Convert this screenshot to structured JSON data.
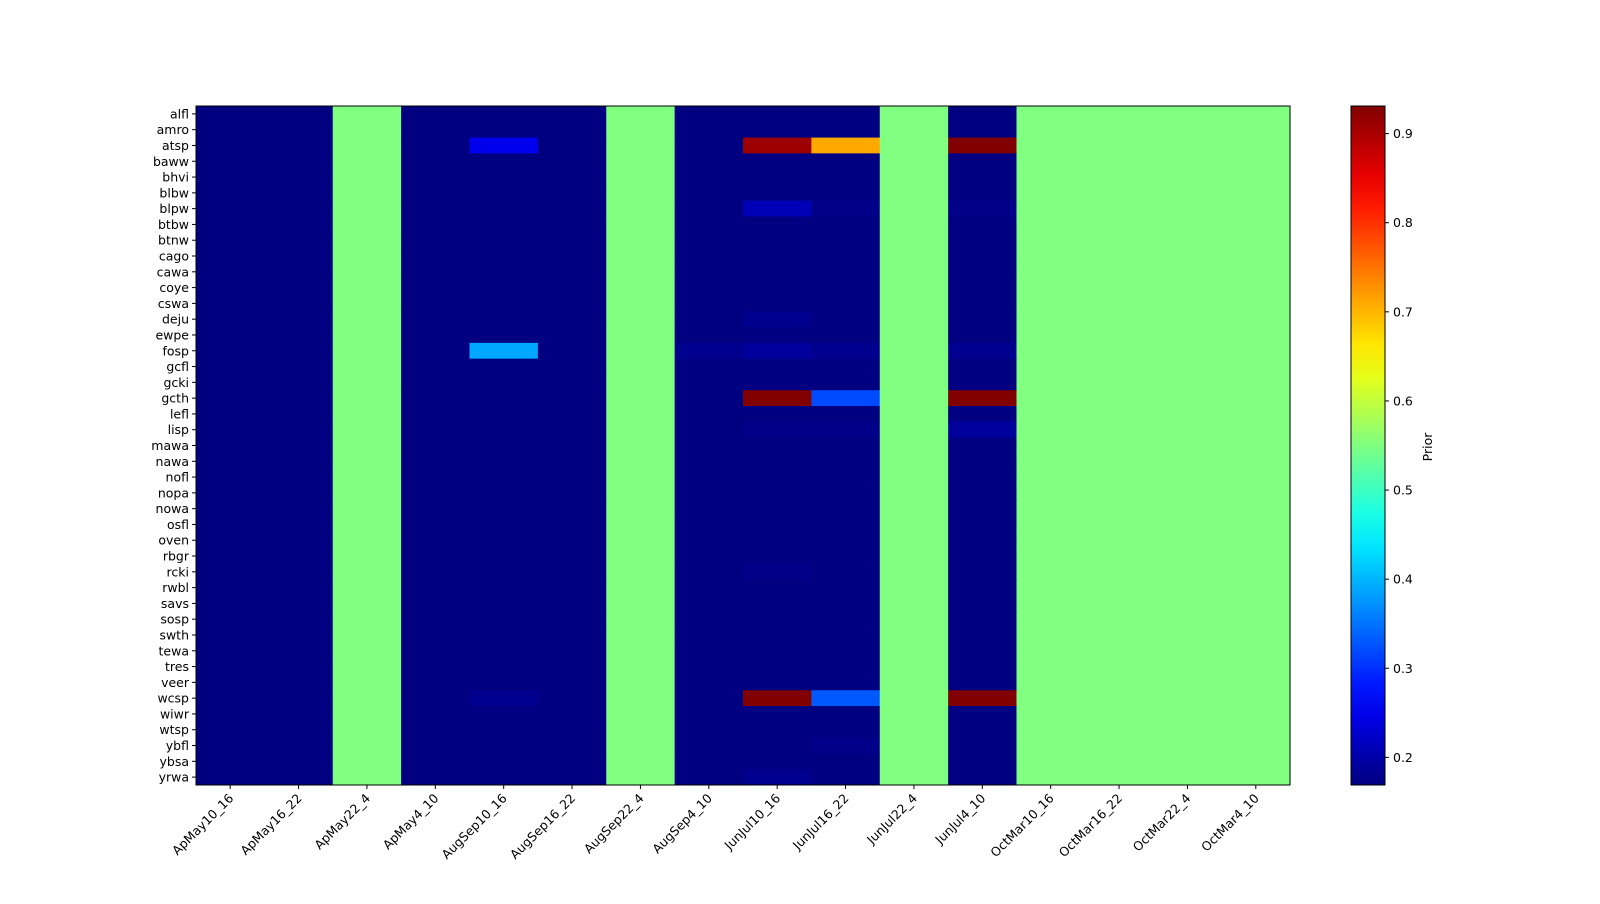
{
  "chart_data": {
    "type": "heatmap",
    "title": "",
    "xlabel": "",
    "ylabel": "",
    "colormap": "jet",
    "colorbar": {
      "label": "Prior",
      "range": [
        0.169,
        0.931
      ],
      "ticks": [
        "0.2",
        "0.3",
        "0.4",
        "0.5",
        "0.6",
        "0.7",
        "0.8",
        "0.9"
      ],
      "tick_values": [
        0.2,
        0.3,
        0.4,
        0.5,
        0.6,
        0.7,
        0.8,
        0.9
      ]
    },
    "columns": [
      "ApMay10_16",
      "ApMay16_22",
      "ApMay22_4",
      "ApMay4_10",
      "AugSep10_16",
      "AugSep16_22",
      "AugSep22_4",
      "AugSep4_10",
      "JunJul10_16",
      "JunJul16_22",
      "JunJul22_4",
      "JunJul4_10",
      "OctMar10_16",
      "OctMar16_22",
      "OctMar22_4",
      "OctMar4_10"
    ],
    "rows": [
      "alfl",
      "amro",
      "atsp",
      "baww",
      "bhvi",
      "blbw",
      "blpw",
      "btbw",
      "btnw",
      "cago",
      "cawa",
      "coye",
      "cswa",
      "deju",
      "ewpe",
      "fosp",
      "gcfl",
      "gcki",
      "gcth",
      "lefl",
      "lisp",
      "mawa",
      "nawa",
      "nofl",
      "nopa",
      "nowa",
      "osfl",
      "oven",
      "rbgr",
      "rcki",
      "rwbl",
      "savs",
      "sosp",
      "swth",
      "tewa",
      "tres",
      "veer",
      "wcsp",
      "wiwr",
      "wtsp",
      "ybfl",
      "ybsa",
      "yrwa"
    ],
    "values": [
      [
        0.17,
        0.17,
        0.55,
        0.17,
        0.17,
        0.17,
        0.55,
        0.17,
        0.17,
        0.17,
        0.55,
        0.17,
        0.55,
        0.55,
        0.55,
        0.55
      ],
      [
        0.17,
        0.17,
        0.55,
        0.17,
        0.17,
        0.17,
        0.55,
        0.17,
        0.17,
        0.17,
        0.55,
        0.17,
        0.55,
        0.55,
        0.55,
        0.55
      ],
      [
        0.17,
        0.17,
        0.55,
        0.17,
        0.25,
        0.17,
        0.55,
        0.17,
        0.91,
        0.71,
        0.55,
        0.93,
        0.55,
        0.55,
        0.55,
        0.55
      ],
      [
        0.17,
        0.17,
        0.55,
        0.17,
        0.17,
        0.17,
        0.55,
        0.17,
        0.17,
        0.17,
        0.55,
        0.17,
        0.55,
        0.55,
        0.55,
        0.55
      ],
      [
        0.17,
        0.17,
        0.55,
        0.17,
        0.17,
        0.17,
        0.55,
        0.17,
        0.17,
        0.17,
        0.55,
        0.17,
        0.55,
        0.55,
        0.55,
        0.55
      ],
      [
        0.17,
        0.17,
        0.55,
        0.17,
        0.17,
        0.17,
        0.55,
        0.17,
        0.17,
        0.17,
        0.55,
        0.17,
        0.55,
        0.55,
        0.55,
        0.55
      ],
      [
        0.17,
        0.17,
        0.55,
        0.17,
        0.17,
        0.17,
        0.55,
        0.17,
        0.21,
        0.175,
        0.55,
        0.175,
        0.55,
        0.55,
        0.55,
        0.55
      ],
      [
        0.17,
        0.17,
        0.55,
        0.17,
        0.17,
        0.17,
        0.55,
        0.17,
        0.17,
        0.17,
        0.55,
        0.17,
        0.55,
        0.55,
        0.55,
        0.55
      ],
      [
        0.17,
        0.17,
        0.55,
        0.17,
        0.17,
        0.17,
        0.55,
        0.17,
        0.17,
        0.17,
        0.55,
        0.17,
        0.55,
        0.55,
        0.55,
        0.55
      ],
      [
        0.17,
        0.17,
        0.55,
        0.17,
        0.17,
        0.17,
        0.55,
        0.17,
        0.17,
        0.17,
        0.55,
        0.17,
        0.55,
        0.55,
        0.55,
        0.55
      ],
      [
        0.17,
        0.17,
        0.55,
        0.17,
        0.17,
        0.17,
        0.55,
        0.17,
        0.17,
        0.17,
        0.55,
        0.17,
        0.55,
        0.55,
        0.55,
        0.55
      ],
      [
        0.17,
        0.17,
        0.55,
        0.17,
        0.17,
        0.17,
        0.55,
        0.17,
        0.17,
        0.17,
        0.55,
        0.17,
        0.55,
        0.55,
        0.55,
        0.55
      ],
      [
        0.17,
        0.17,
        0.55,
        0.17,
        0.17,
        0.17,
        0.55,
        0.17,
        0.17,
        0.17,
        0.55,
        0.17,
        0.55,
        0.55,
        0.55,
        0.55
      ],
      [
        0.17,
        0.17,
        0.55,
        0.17,
        0.17,
        0.17,
        0.55,
        0.17,
        0.18,
        0.17,
        0.55,
        0.17,
        0.55,
        0.55,
        0.55,
        0.55
      ],
      [
        0.17,
        0.17,
        0.55,
        0.17,
        0.17,
        0.17,
        0.55,
        0.17,
        0.17,
        0.17,
        0.55,
        0.17,
        0.55,
        0.55,
        0.55,
        0.55
      ],
      [
        0.17,
        0.17,
        0.55,
        0.17,
        0.39,
        0.17,
        0.55,
        0.18,
        0.19,
        0.18,
        0.55,
        0.18,
        0.55,
        0.55,
        0.55,
        0.55
      ],
      [
        0.17,
        0.17,
        0.55,
        0.17,
        0.17,
        0.17,
        0.55,
        0.17,
        0.17,
        0.17,
        0.55,
        0.17,
        0.55,
        0.55,
        0.55,
        0.55
      ],
      [
        0.17,
        0.17,
        0.55,
        0.17,
        0.17,
        0.17,
        0.55,
        0.17,
        0.17,
        0.17,
        0.55,
        0.17,
        0.55,
        0.55,
        0.55,
        0.55
      ],
      [
        0.17,
        0.17,
        0.55,
        0.17,
        0.17,
        0.17,
        0.55,
        0.17,
        0.93,
        0.32,
        0.55,
        0.93,
        0.55,
        0.55,
        0.55,
        0.55
      ],
      [
        0.17,
        0.17,
        0.55,
        0.17,
        0.17,
        0.17,
        0.55,
        0.17,
        0.17,
        0.17,
        0.55,
        0.17,
        0.55,
        0.55,
        0.55,
        0.55
      ],
      [
        0.17,
        0.17,
        0.55,
        0.17,
        0.17,
        0.17,
        0.55,
        0.17,
        0.175,
        0.175,
        0.55,
        0.19,
        0.55,
        0.55,
        0.55,
        0.55
      ],
      [
        0.17,
        0.17,
        0.55,
        0.17,
        0.17,
        0.17,
        0.55,
        0.17,
        0.17,
        0.17,
        0.55,
        0.17,
        0.55,
        0.55,
        0.55,
        0.55
      ],
      [
        0.17,
        0.17,
        0.55,
        0.17,
        0.17,
        0.17,
        0.55,
        0.17,
        0.17,
        0.17,
        0.55,
        0.17,
        0.55,
        0.55,
        0.55,
        0.55
      ],
      [
        0.17,
        0.17,
        0.55,
        0.17,
        0.17,
        0.17,
        0.55,
        0.17,
        0.17,
        0.17,
        0.55,
        0.17,
        0.55,
        0.55,
        0.55,
        0.55
      ],
      [
        0.17,
        0.17,
        0.55,
        0.17,
        0.17,
        0.17,
        0.55,
        0.17,
        0.17,
        0.17,
        0.55,
        0.17,
        0.55,
        0.55,
        0.55,
        0.55
      ],
      [
        0.17,
        0.17,
        0.55,
        0.17,
        0.17,
        0.17,
        0.55,
        0.17,
        0.17,
        0.17,
        0.55,
        0.17,
        0.55,
        0.55,
        0.55,
        0.55
      ],
      [
        0.17,
        0.17,
        0.55,
        0.17,
        0.17,
        0.17,
        0.55,
        0.17,
        0.17,
        0.17,
        0.55,
        0.17,
        0.55,
        0.55,
        0.55,
        0.55
      ],
      [
        0.17,
        0.17,
        0.55,
        0.17,
        0.17,
        0.17,
        0.55,
        0.17,
        0.17,
        0.17,
        0.55,
        0.17,
        0.55,
        0.55,
        0.55,
        0.55
      ],
      [
        0.17,
        0.17,
        0.55,
        0.17,
        0.17,
        0.17,
        0.55,
        0.17,
        0.17,
        0.17,
        0.55,
        0.17,
        0.55,
        0.55,
        0.55,
        0.55
      ],
      [
        0.17,
        0.17,
        0.55,
        0.17,
        0.17,
        0.17,
        0.55,
        0.17,
        0.175,
        0.17,
        0.55,
        0.17,
        0.55,
        0.55,
        0.55,
        0.55
      ],
      [
        0.17,
        0.17,
        0.55,
        0.17,
        0.17,
        0.17,
        0.55,
        0.17,
        0.17,
        0.17,
        0.55,
        0.17,
        0.55,
        0.55,
        0.55,
        0.55
      ],
      [
        0.17,
        0.17,
        0.55,
        0.17,
        0.17,
        0.17,
        0.55,
        0.17,
        0.17,
        0.17,
        0.55,
        0.17,
        0.55,
        0.55,
        0.55,
        0.55
      ],
      [
        0.17,
        0.17,
        0.55,
        0.17,
        0.17,
        0.17,
        0.55,
        0.17,
        0.17,
        0.17,
        0.55,
        0.17,
        0.55,
        0.55,
        0.55,
        0.55
      ],
      [
        0.17,
        0.17,
        0.55,
        0.17,
        0.17,
        0.17,
        0.55,
        0.17,
        0.17,
        0.17,
        0.55,
        0.17,
        0.55,
        0.55,
        0.55,
        0.55
      ],
      [
        0.17,
        0.17,
        0.55,
        0.17,
        0.17,
        0.17,
        0.55,
        0.17,
        0.17,
        0.17,
        0.55,
        0.17,
        0.55,
        0.55,
        0.55,
        0.55
      ],
      [
        0.17,
        0.17,
        0.55,
        0.17,
        0.17,
        0.17,
        0.55,
        0.17,
        0.17,
        0.17,
        0.55,
        0.17,
        0.55,
        0.55,
        0.55,
        0.55
      ],
      [
        0.17,
        0.17,
        0.55,
        0.17,
        0.17,
        0.17,
        0.55,
        0.17,
        0.17,
        0.17,
        0.55,
        0.17,
        0.55,
        0.55,
        0.55,
        0.55
      ],
      [
        0.17,
        0.17,
        0.55,
        0.17,
        0.18,
        0.17,
        0.55,
        0.17,
        0.93,
        0.33,
        0.55,
        0.93,
        0.55,
        0.55,
        0.55,
        0.55
      ],
      [
        0.17,
        0.17,
        0.55,
        0.17,
        0.17,
        0.17,
        0.55,
        0.17,
        0.17,
        0.17,
        0.55,
        0.17,
        0.55,
        0.55,
        0.55,
        0.55
      ],
      [
        0.17,
        0.17,
        0.55,
        0.17,
        0.17,
        0.17,
        0.55,
        0.17,
        0.17,
        0.17,
        0.55,
        0.17,
        0.55,
        0.55,
        0.55,
        0.55
      ],
      [
        0.17,
        0.17,
        0.55,
        0.17,
        0.17,
        0.17,
        0.55,
        0.17,
        0.17,
        0.175,
        0.55,
        0.17,
        0.55,
        0.55,
        0.55,
        0.55
      ],
      [
        0.17,
        0.17,
        0.55,
        0.17,
        0.17,
        0.17,
        0.55,
        0.17,
        0.17,
        0.17,
        0.55,
        0.17,
        0.55,
        0.55,
        0.55,
        0.55
      ],
      [
        0.17,
        0.17,
        0.55,
        0.17,
        0.17,
        0.17,
        0.55,
        0.17,
        0.18,
        0.17,
        0.55,
        0.17,
        0.55,
        0.55,
        0.55,
        0.55
      ]
    ]
  }
}
